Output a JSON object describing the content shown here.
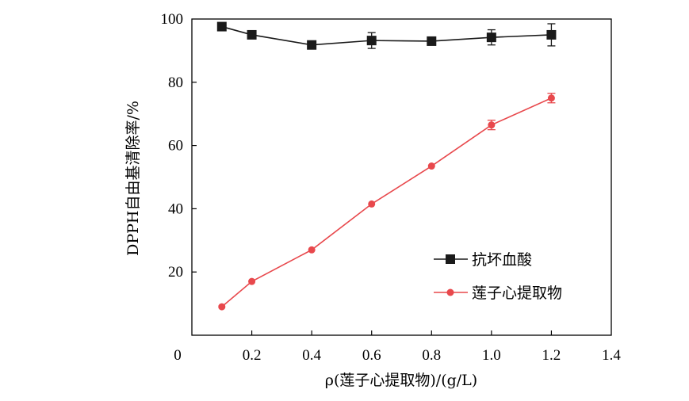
{
  "chart_data": {
    "type": "line",
    "xlabel": "ρ(莲子心提取物)/(g/L)",
    "ylabel": "DPPH自由基清除率/%",
    "xlim": [
      0,
      1.4
    ],
    "ylim": [
      0,
      100
    ],
    "x_ticks": [
      "0",
      "0.2",
      "0.4",
      "0.6",
      "0.8",
      "1.0",
      "1.2",
      "1.4"
    ],
    "y_ticks": [
      "20",
      "40",
      "60",
      "80",
      "100"
    ],
    "grid": false,
    "legend_position": "bottom-right",
    "series": [
      {
        "name": "抗坏血酸",
        "marker": "square",
        "color": "#1a1a1a",
        "x": [
          0.1,
          0.2,
          0.4,
          0.6,
          0.8,
          1.0,
          1.2
        ],
        "y": [
          97.6,
          95.0,
          91.8,
          93.2,
          93.0,
          94.2,
          95.0
        ],
        "error": [
          0.5,
          0.6,
          0.8,
          2.5,
          0.6,
          2.4,
          3.5
        ]
      },
      {
        "name": "莲子心提取物",
        "marker": "circle",
        "color": "#e8484c",
        "x": [
          0.1,
          0.2,
          0.4,
          0.6,
          0.8,
          1.0,
          1.2
        ],
        "y": [
          9.0,
          17.0,
          27.0,
          41.5,
          53.5,
          66.5,
          75.0
        ],
        "error": [
          0.3,
          0.4,
          0.4,
          0.5,
          0.4,
          1.5,
          1.5
        ]
      }
    ]
  }
}
